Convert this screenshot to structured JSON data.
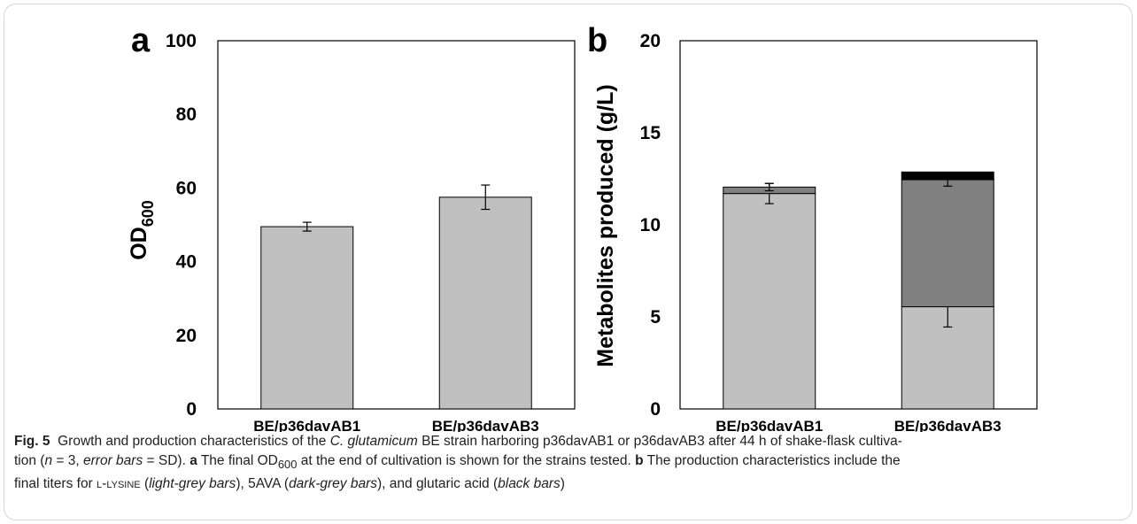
{
  "chart_data": [
    {
      "type": "bar",
      "panel": "a",
      "ylabel": "OD",
      "ylabel_sub": "600",
      "ylim": [
        0,
        100
      ],
      "yticks": [
        "0",
        "20",
        "40",
        "60",
        "80",
        "100"
      ],
      "categories": [
        "BE/p36davAB1",
        "BE/p36davAB3"
      ],
      "series": [
        {
          "values": [
            49.5,
            57.5
          ],
          "errors": [
            1.2,
            3.3
          ],
          "color": "#c0c0c0"
        }
      ],
      "grid": false,
      "legend": "none"
    },
    {
      "type": "bar",
      "stacked": true,
      "panel": "b",
      "ylabel": "Metabolites produced (g/L)",
      "ylim": [
        0,
        20
      ],
      "yticks": [
        "0",
        "5",
        "10",
        "15",
        "20"
      ],
      "categories": [
        "BE/p36davAB1",
        "BE/p36davAB3"
      ],
      "series": [
        {
          "values": [
            11.7,
            5.55
          ],
          "errors": [
            0.55,
            1.1
          ],
          "color": "#c0c0c0"
        },
        {
          "values": [
            0.35,
            6.9
          ],
          "errors": [
            0.2,
            0.35
          ],
          "color": "#808080"
        },
        {
          "values": [
            0.0,
            0.42
          ],
          "errors": [
            0,
            0
          ],
          "color": "#000000"
        }
      ],
      "grid": false,
      "legend": "none"
    }
  ],
  "caption": {
    "fig": "Fig. 5",
    "t1": "Growth and production characteristics of the",
    "species": "C. glutamicum",
    "t2": "BE strain harboring p36davAB1 or p36davAB3 after 44 h of shake-flask cultiva-",
    "t3": "tion (",
    "n": "n",
    "t4": "= 3,",
    "eb": "error bars",
    "t5": "= SD).",
    "a": "a",
    "t6": "The final OD",
    "sub": "600",
    "t7": "at the end of cultivation is shown for the strains tested.",
    "b": "b",
    "t8": "The production characteristics include the",
    "t9": "final titers for",
    "lys": "l-lysine",
    "lg": "light-grey bars",
    "t10": "), 5AVA (",
    "dg": "dark-grey bars",
    "t11": "), and glutaric acid (",
    "bb": "black bars",
    "t12": ")"
  }
}
